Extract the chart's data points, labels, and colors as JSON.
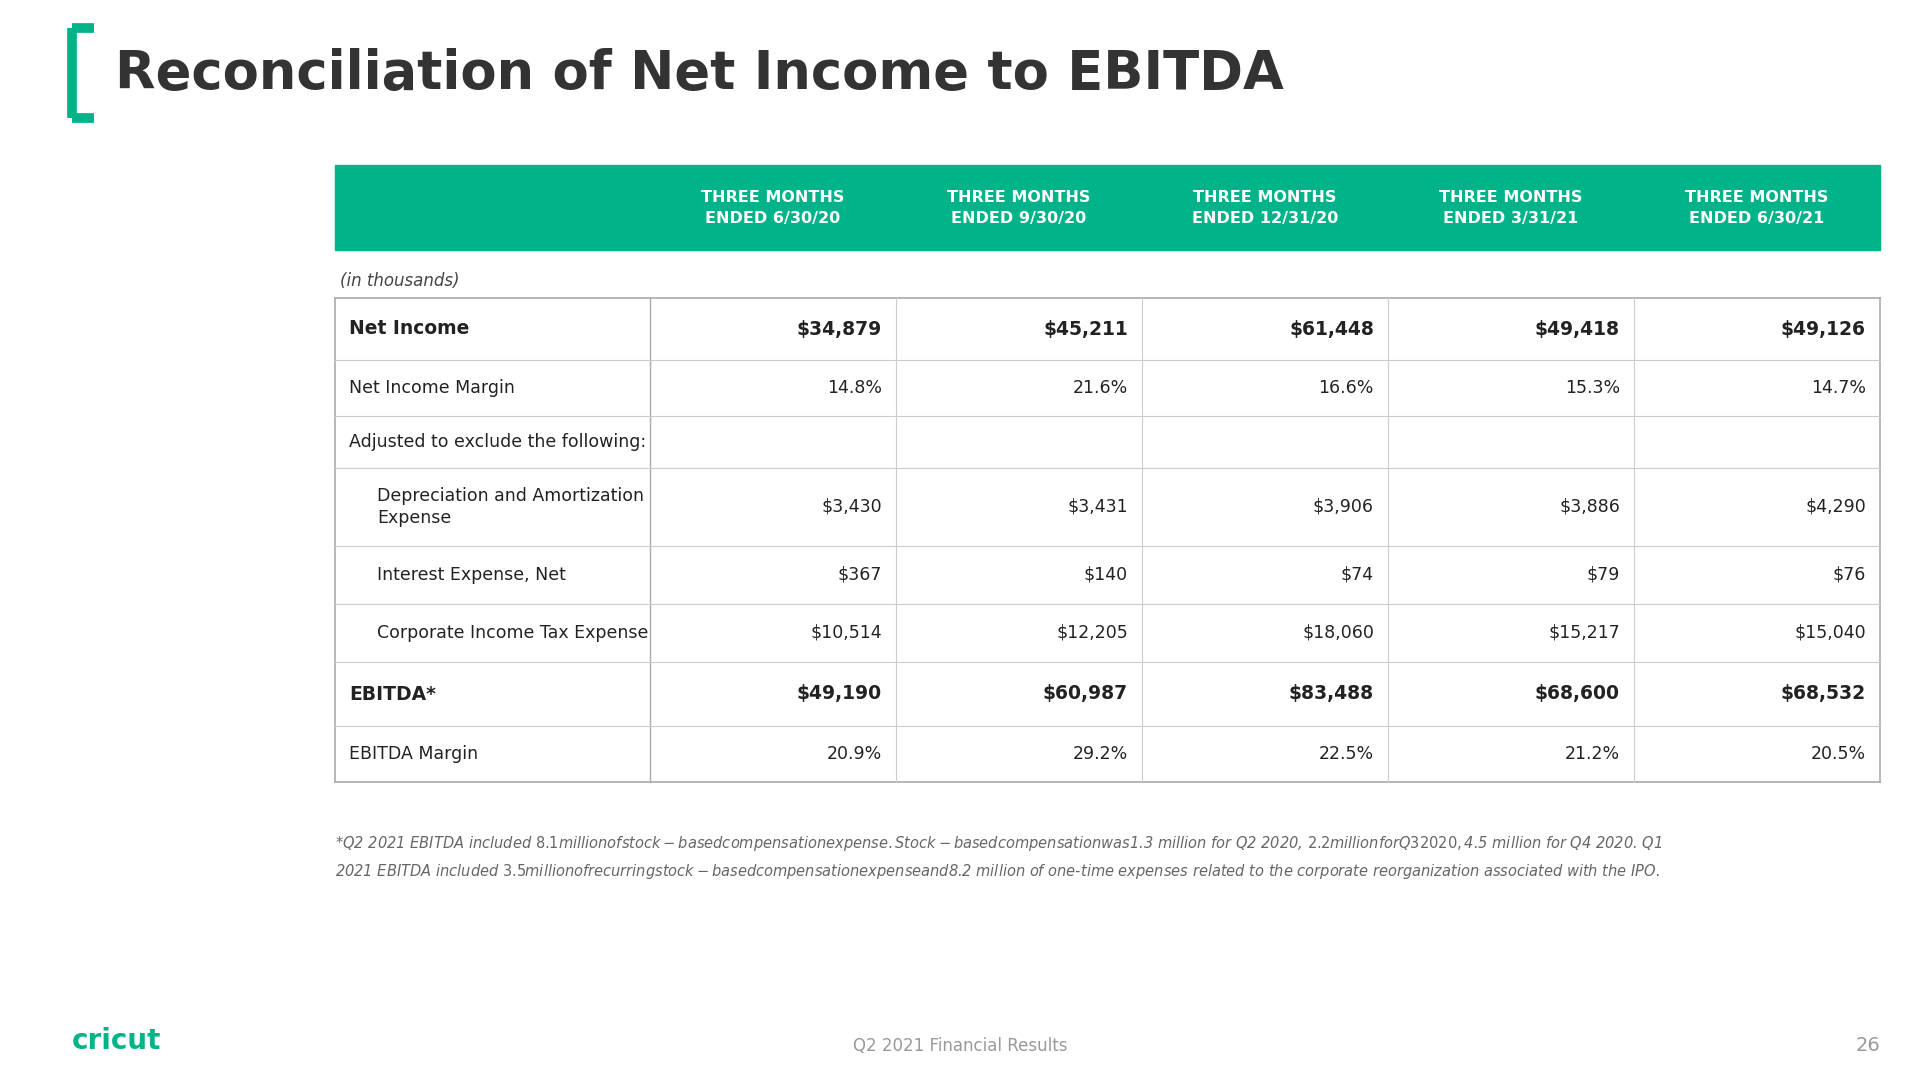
{
  "title": "Reconciliation of Net Income to EBITDA",
  "background_color": "#ffffff",
  "header_bg_color": "#00b388",
  "header_text_color": "#ffffff",
  "header_labels": [
    "THREE MONTHS\nENDED 6/30/20",
    "THREE MONTHS\nENDED 9/30/20",
    "THREE MONTHS\nENDED 12/31/20",
    "THREE MONTHS\nENDED 3/31/21",
    "THREE MONTHS\nENDED 6/30/21"
  ],
  "in_thousands": "(in thousands)",
  "rows": [
    {
      "label": "Net Income",
      "values": [
        "$34,879",
        "$45,211",
        "$61,448",
        "$49,418",
        "$49,126"
      ],
      "bold": true,
      "indent": 0
    },
    {
      "label": "Net Income Margin",
      "values": [
        "14.8%",
        "21.6%",
        "16.6%",
        "15.3%",
        "14.7%"
      ],
      "bold": false,
      "indent": 0
    },
    {
      "label": "Adjusted to exclude the following:",
      "values": [
        "",
        "",
        "",
        "",
        ""
      ],
      "bold": false,
      "indent": 0
    },
    {
      "label": "Depreciation and Amortization\nExpense",
      "values": [
        "$3,430",
        "$3,431",
        "$3,906",
        "$3,886",
        "$4,290"
      ],
      "bold": false,
      "indent": 1
    },
    {
      "label": "Interest Expense, Net",
      "values": [
        "$367",
        "$140",
        "$74",
        "$79",
        "$76"
      ],
      "bold": false,
      "indent": 1
    },
    {
      "label": "Corporate Income Tax Expense",
      "values": [
        "$10,514",
        "$12,205",
        "$18,060",
        "$15,217",
        "$15,040"
      ],
      "bold": false,
      "indent": 1
    },
    {
      "label": "EBITDA*",
      "values": [
        "$49,190",
        "$60,987",
        "$83,488",
        "$68,600",
        "$68,532"
      ],
      "bold": true,
      "indent": 0
    },
    {
      "label": "EBITDA Margin",
      "values": [
        "20.9%",
        "29.2%",
        "22.5%",
        "21.2%",
        "20.5%"
      ],
      "bold": false,
      "indent": 0
    }
  ],
  "footnote_line1": "*Q2 2021 EBITDA included $8.1 million of stock-based compensation expense. Stock-based compensation was $1.3 million for Q2 2020, $2.2 million for Q3 2020, $4.5 million for Q4 2020. Q1",
  "footnote_line2": "2021 EBITDA included $3.5 million of recurring stock-based compensation expense and $8.2 million of one-time expenses related to the corporate reorganization associated with the IPO.",
  "footer_center": "Q2 2021 Financial Results",
  "footer_page": "26",
  "title_bar_color": "#00b388",
  "cricut_color": "#00b388"
}
